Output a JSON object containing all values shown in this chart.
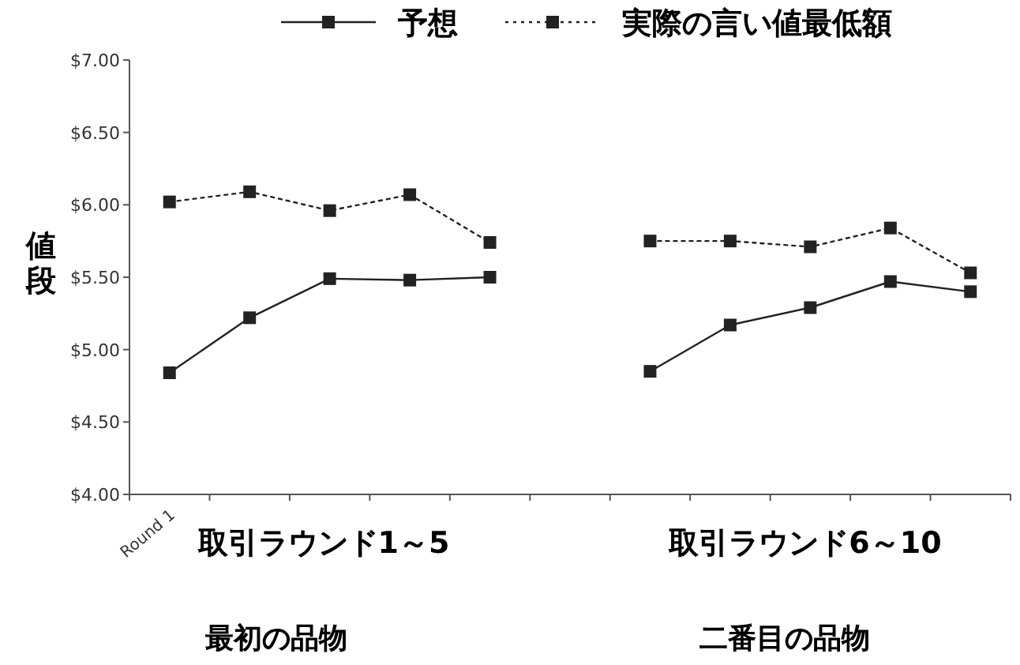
{
  "chart_data": {
    "type": "line",
    "categories": [
      "Round 1",
      null,
      null,
      null,
      null,
      null,
      null,
      null,
      null,
      null,
      null
    ],
    "series": [
      {
        "name": "予想",
        "color": "#222222",
        "line_style": "solid",
        "values": [
          4.84,
          5.22,
          5.49,
          5.48,
          5.5,
          null,
          4.85,
          5.17,
          5.29,
          5.47,
          5.4
        ]
      },
      {
        "name": "実際の言い値最低額",
        "color": "#222222",
        "line_style": "dotted",
        "values": [
          6.02,
          6.09,
          5.96,
          6.07,
          5.74,
          null,
          5.75,
          5.75,
          5.71,
          5.84,
          5.53
        ]
      }
    ],
    "ylabel": "値段",
    "ylim": [
      4,
      7
    ],
    "yticks": [
      {
        "value": 4,
        "label": "$4.00"
      },
      {
        "value": 4.5,
        "label": "$4.50"
      },
      {
        "value": 5,
        "label": "$5.00"
      },
      {
        "value": 5.5,
        "label": "$5.50"
      },
      {
        "value": 6,
        "label": "$6.00"
      },
      {
        "value": 6.5,
        "label": "$6.50"
      },
      {
        "value": 7,
        "label": "$7.00"
      }
    ],
    "marker": "square",
    "legend": "top",
    "grid": false,
    "annotations": [
      "取引ラウンド1～5",
      "取引ラウンド6～10",
      "最初の品物",
      "二番目の品物"
    ]
  }
}
